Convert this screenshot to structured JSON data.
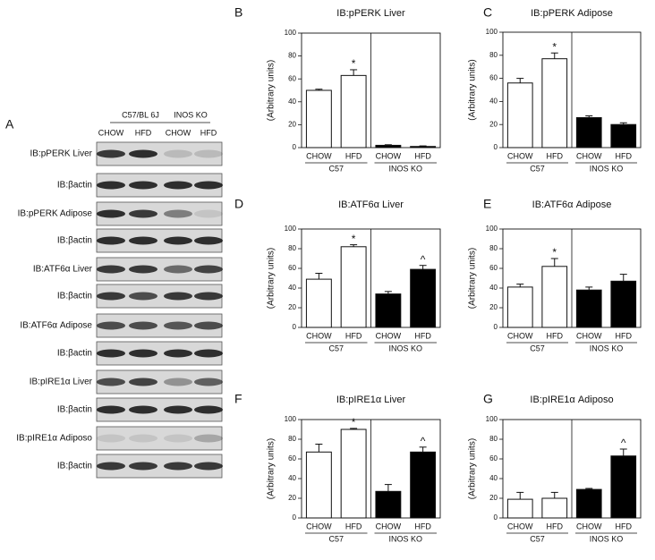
{
  "blot": {
    "letter": "A",
    "groups": [
      "C57/BL 6J",
      "INOS KO"
    ],
    "lanes": [
      "CHOW",
      "HFD",
      "CHOW",
      "HFD"
    ],
    "rows": [
      "IB:pPERK Liver",
      "IB:βactin",
      "IB:pPERK Adipose",
      "IB:βactin",
      "IB:ATF6α Liver",
      "IB:βactin",
      "IB:ATF6α Adipose",
      "IB:βactin",
      "IB:pIRE1α Liver",
      "IB:βactin",
      "IB:pIRE1α Adiposo",
      "IB:βactin"
    ]
  },
  "chart_data": [
    {
      "type": "bar",
      "letter": "B",
      "title": "IB:pPERK Liver",
      "ylabel": "(Arbitrary units)",
      "categories": [
        "CHOW",
        "HFD",
        "CHOW",
        "HFD"
      ],
      "groups": [
        "C57",
        "INOS KO"
      ],
      "values": [
        50,
        63,
        2,
        1
      ],
      "errors": [
        1,
        5,
        0.5,
        0.5
      ],
      "colors": [
        "#ffffff",
        "#ffffff",
        "#000000",
        "#000000"
      ],
      "annotations": [
        null,
        "*",
        null,
        null
      ],
      "ylim": [
        0,
        100
      ],
      "yticks": [
        0,
        20,
        40,
        60,
        80,
        100
      ]
    },
    {
      "type": "bar",
      "letter": "C",
      "title": "IB:pPERK Adipose",
      "ylabel": "(Arbitrary units)",
      "categories": [
        "CHOW",
        "HFD",
        "CHOW",
        "HFD"
      ],
      "groups": [
        "C57",
        "INOS KO"
      ],
      "values": [
        56,
        77,
        26,
        20
      ],
      "errors": [
        4,
        5,
        1.5,
        1.5
      ],
      "colors": [
        "#ffffff",
        "#ffffff",
        "#000000",
        "#000000"
      ],
      "annotations": [
        null,
        "*",
        null,
        null
      ],
      "ylim": [
        0,
        100
      ],
      "yticks": [
        0,
        20,
        40,
        60,
        80,
        100
      ]
    },
    {
      "type": "bar",
      "letter": "D",
      "title": "IB:ATF6α Liver",
      "ylabel": "(Arbitrary units)",
      "categories": [
        "CHOW",
        "HFD",
        "CHOW",
        "HFD"
      ],
      "groups": [
        "C57",
        "INOS KO"
      ],
      "values": [
        49,
        82,
        34,
        59
      ],
      "errors": [
        6,
        2,
        2.5,
        4
      ],
      "colors": [
        "#ffffff",
        "#ffffff",
        "#000000",
        "#000000"
      ],
      "annotations": [
        null,
        "*",
        null,
        "^"
      ],
      "ylim": [
        0,
        100
      ],
      "yticks": [
        0,
        20,
        40,
        60,
        80,
        100
      ]
    },
    {
      "type": "bar",
      "letter": "E",
      "title": "IB:ATF6α Adipose",
      "ylabel": "(Arbitrary units)",
      "categories": [
        "CHOW",
        "HFD",
        "CHOW",
        "HFD"
      ],
      "groups": [
        "C57",
        "INOS KO"
      ],
      "values": [
        41,
        62,
        38,
        47
      ],
      "errors": [
        3,
        8,
        3,
        7
      ],
      "colors": [
        "#ffffff",
        "#ffffff",
        "#000000",
        "#000000"
      ],
      "annotations": [
        null,
        "*",
        null,
        null
      ],
      "ylim": [
        0,
        100
      ],
      "yticks": [
        0,
        20,
        40,
        60,
        80,
        100
      ]
    },
    {
      "type": "bar",
      "letter": "F",
      "title": "IB:pIRE1α Liver",
      "ylabel": "(Arbitrary units)",
      "categories": [
        "CHOW",
        "HFD",
        "CHOW",
        "HFD"
      ],
      "groups": [
        "C57",
        "INOS KO"
      ],
      "values": [
        67,
        90,
        27,
        67
      ],
      "errors": [
        8,
        1,
        7,
        5
      ],
      "colors": [
        "#ffffff",
        "#ffffff",
        "#000000",
        "#000000"
      ],
      "annotations": [
        null,
        "*",
        null,
        "^"
      ],
      "ylim": [
        0,
        100
      ],
      "yticks": [
        0,
        20,
        40,
        60,
        80,
        100
      ]
    },
    {
      "type": "bar",
      "letter": "G",
      "title": "IB:pIRE1α Adiposo",
      "ylabel": "(Arbitrary units)",
      "categories": [
        "CHOW",
        "HFD",
        "CHOW",
        "HFD"
      ],
      "groups": [
        "C57",
        "INOS KO"
      ],
      "values": [
        19,
        20,
        29,
        63
      ],
      "errors": [
        7,
        6,
        1,
        7
      ],
      "colors": [
        "#ffffff",
        "#ffffff",
        "#000000",
        "#000000"
      ],
      "annotations": [
        null,
        null,
        null,
        "^"
      ],
      "ylim": [
        0,
        100
      ],
      "yticks": [
        0,
        20,
        40,
        60,
        80,
        100
      ]
    }
  ]
}
